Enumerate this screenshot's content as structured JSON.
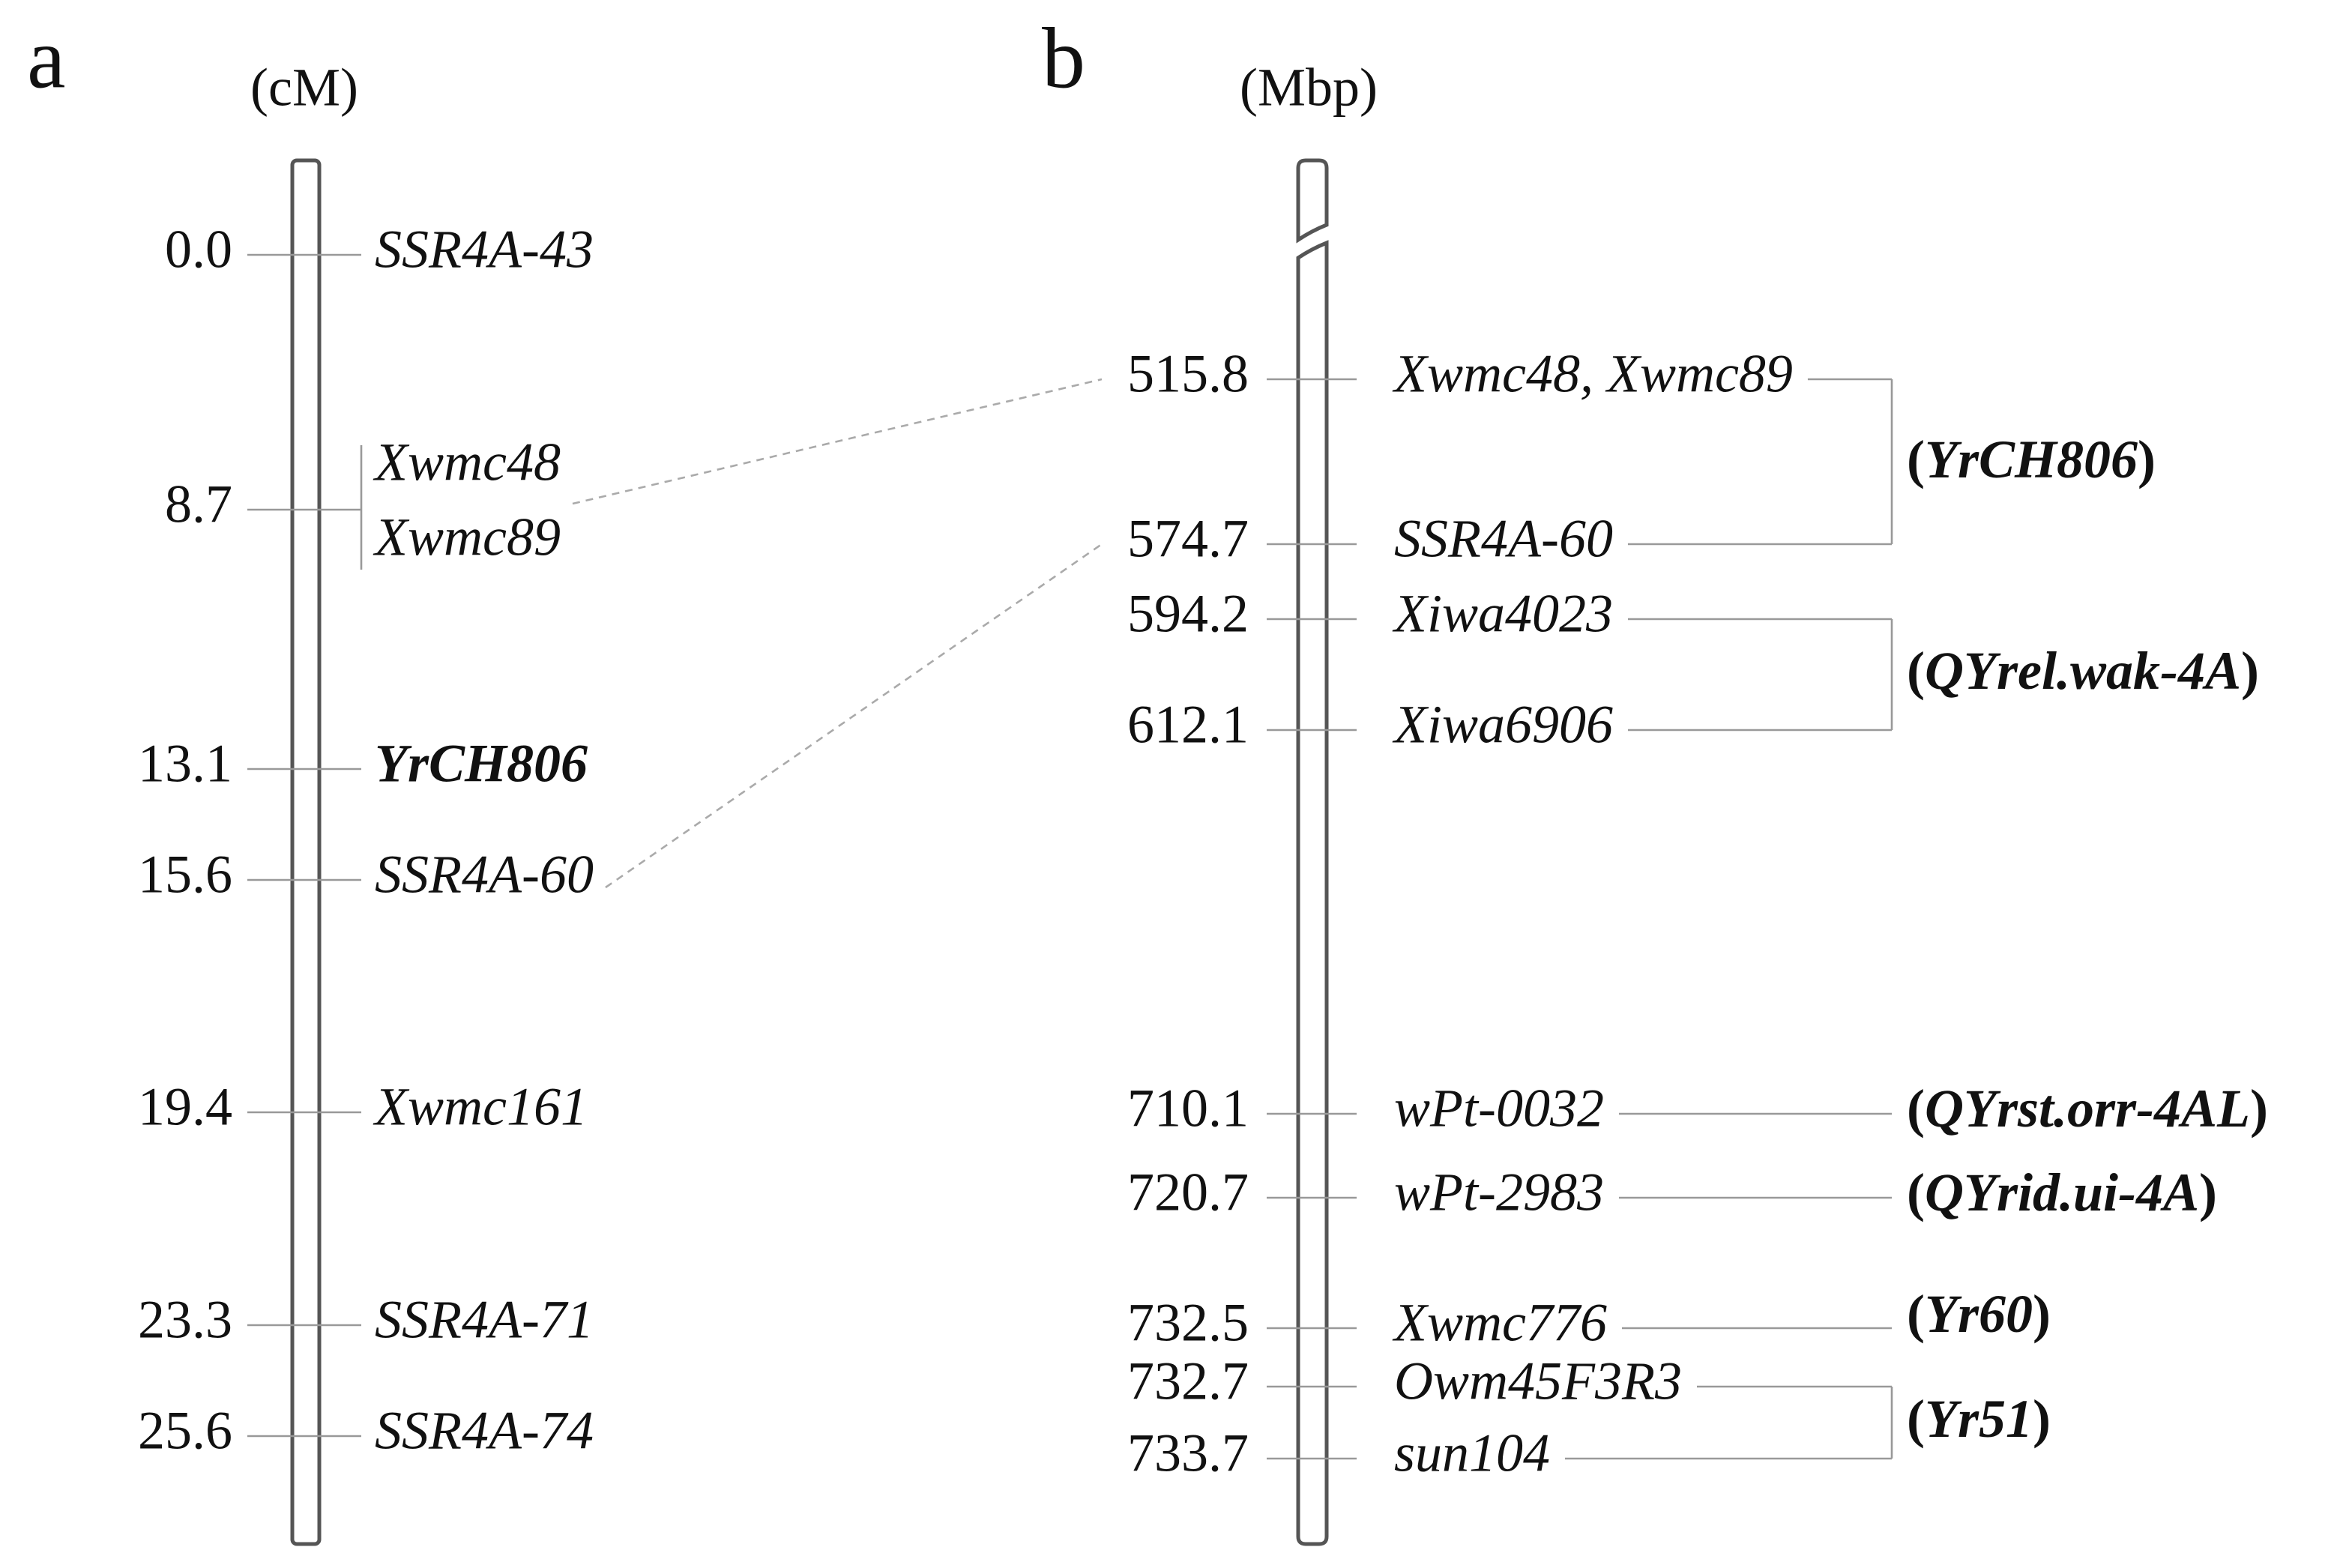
{
  "panels": [
    {
      "letter": "a",
      "unit": "(cM)",
      "markers": [
        {
          "position": "0.0",
          "names": [
            "SSR4A-43"
          ]
        },
        {
          "position": "8.7",
          "names": [
            "Xwmc48",
            "Xwmc89"
          ]
        },
        {
          "position": "13.1",
          "names": [
            "YrCH806"
          ]
        },
        {
          "position": "15.6",
          "names": [
            "SSR4A-60"
          ]
        },
        {
          "position": "19.4",
          "names": [
            "Xwmc161"
          ]
        },
        {
          "position": "23.3",
          "names": [
            "SSR4A-71"
          ]
        },
        {
          "position": "25.6",
          "names": [
            "SSR4A-74"
          ]
        }
      ]
    },
    {
      "letter": "b",
      "unit": "(Mbp)",
      "markers": [
        {
          "position": "515.8",
          "names": [
            "Xwmc48, Xwmc89"
          ]
        },
        {
          "position": "574.7",
          "names": [
            "SSR4A-60"
          ]
        },
        {
          "position": "594.2",
          "names": [
            "Xiwa4023"
          ]
        },
        {
          "position": "612.1",
          "names": [
            "Xiwa6906"
          ]
        },
        {
          "position": "710.1",
          "names": [
            "wPt-0032"
          ]
        },
        {
          "position": "720.7",
          "names": [
            "wPt-2983"
          ]
        },
        {
          "position": "732.5",
          "names": [
            "Xwmc776"
          ]
        },
        {
          "position": "732.7",
          "names": [
            "Owm45F3R3"
          ]
        },
        {
          "position": "733.7",
          "names": [
            "sun104"
          ]
        }
      ],
      "groups": [
        {
          "label": "(YrCH806)"
        },
        {
          "label": "(QYrel.wak-4A)"
        },
        {
          "label": "(QYrst.orr-4AL)"
        },
        {
          "label": "(QYrid.ui-4A)"
        },
        {
          "label": "(Yr60)"
        },
        {
          "label": "(Yr51)"
        }
      ]
    }
  ]
}
